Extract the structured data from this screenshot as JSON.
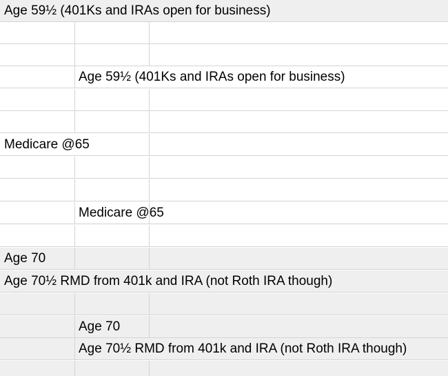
{
  "sheet": {
    "rows": [
      {
        "style": "gray",
        "col1_text": "Age 59½ (401Ks and IRAs open for business)"
      },
      {
        "style": "white"
      },
      {
        "style": "white"
      },
      {
        "style": "white",
        "col2_text": "Age 59½ (401Ks and IRAs open for business)"
      },
      {
        "style": "white"
      },
      {
        "style": "white"
      },
      {
        "style": "white",
        "col1_text": "Medicare @65"
      },
      {
        "style": "white"
      },
      {
        "style": "white"
      },
      {
        "style": "white",
        "col2_text": "Medicare @65"
      },
      {
        "style": "white"
      },
      {
        "style": "gray",
        "col1_text": "Age 70"
      },
      {
        "style": "gray",
        "col1_text": "Age 70½ RMD from 401k and IRA (not Roth IRA though)"
      },
      {
        "style": "gray"
      },
      {
        "style": "gray",
        "col2_text": "Age 70"
      },
      {
        "style": "gray",
        "col2_text": "Age 70½ RMD from 401k and IRA (not Roth IRA though)"
      },
      {
        "style": "gray"
      }
    ],
    "colors": {
      "gridline": "#d4d4d4",
      "highlight_row": "#efefef",
      "background": "#ffffff",
      "text": "#000000"
    }
  }
}
